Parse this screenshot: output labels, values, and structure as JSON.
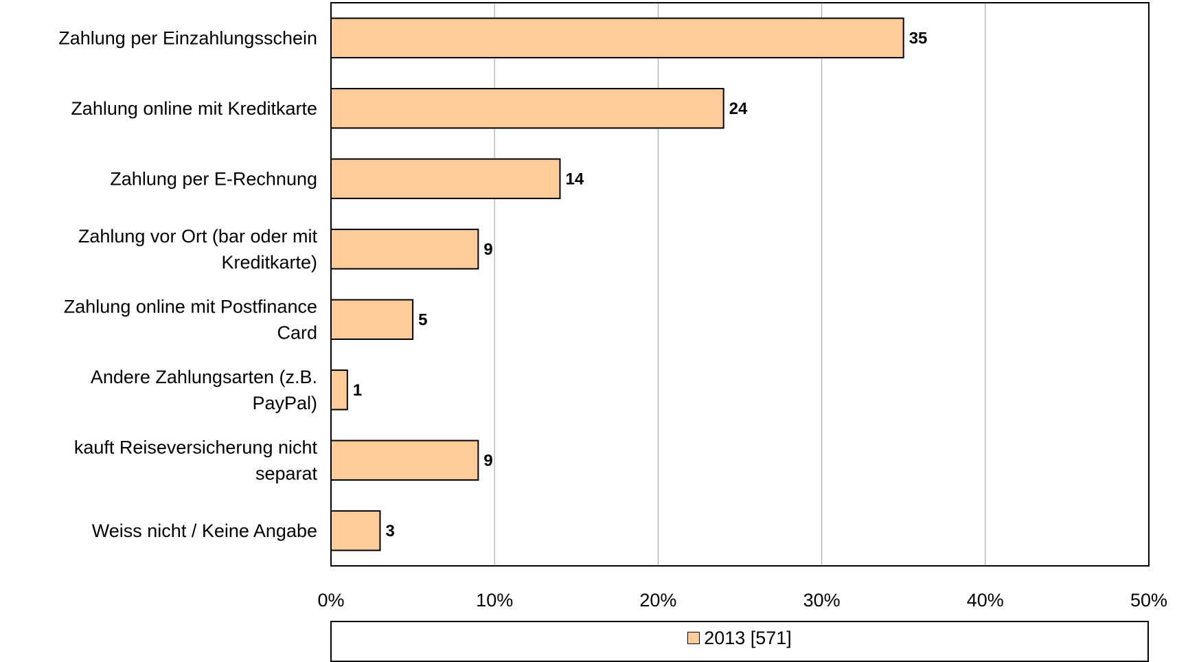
{
  "chart_data": {
    "type": "bar",
    "orientation": "horizontal",
    "categories": [
      "Zahlung per Einzahlungsschein",
      "Zahlung online mit Kreditkarte",
      "Zahlung per E-Rechnung",
      "Zahlung vor Ort (bar oder mit Kreditkarte)",
      "Zahlung online mit Postfinance Card",
      "Andere Zahlungsarten (z.B. PayPal)",
      "kauft Reiseversicherung nicht separat",
      "Weiss nicht / Keine Angabe"
    ],
    "category_lines": [
      [
        "Zahlung per Einzahlungsschein"
      ],
      [
        "Zahlung online mit Kreditkarte"
      ],
      [
        "Zahlung per E-Rechnung"
      ],
      [
        "Zahlung vor Ort (bar oder mit",
        "Kreditkarte)"
      ],
      [
        "Zahlung online mit Postfinance",
        "Card"
      ],
      [
        "Andere Zahlungsarten (z.B.",
        "PayPal)"
      ],
      [
        "kauft Reiseversicherung nicht",
        "separat"
      ],
      [
        "Weiss nicht / Keine Angabe"
      ]
    ],
    "series": [
      {
        "name": "2013 [571]",
        "values": [
          35,
          24,
          14,
          9,
          5,
          1,
          9,
          3
        ],
        "color": "#FFCC99"
      }
    ],
    "data_labels": [
      "35",
      "24",
      "14",
      "9",
      "5",
      "1",
      "9",
      "3"
    ],
    "xlim": [
      0,
      50
    ],
    "x_ticks": [
      0,
      10,
      20,
      30,
      40,
      50
    ],
    "x_tick_labels": [
      "0%",
      "10%",
      "20%",
      "30%",
      "40%",
      "50%"
    ],
    "grid": "vertical",
    "legend_position": "bottom"
  },
  "legend": {
    "label": "2013 [571]"
  },
  "colors": {
    "bar": "#FFCC99",
    "bar_border": "#000000",
    "grid": "#999999"
  }
}
